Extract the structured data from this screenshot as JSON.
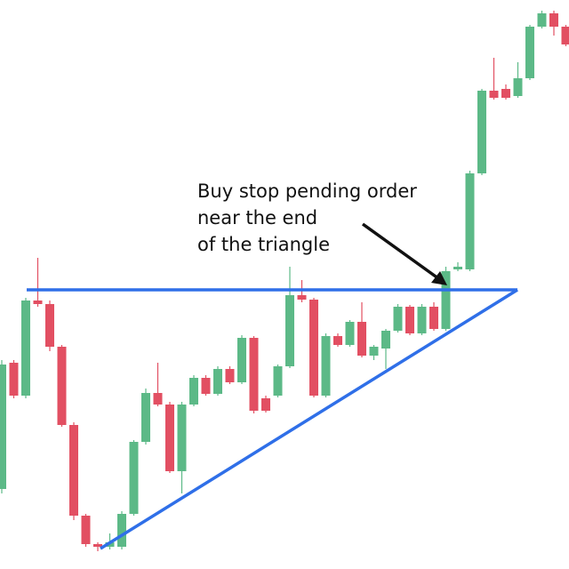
{
  "chart_data": {
    "type": "candlestick",
    "annotation": [
      "Buy stop pending order",
      "near the end",
      "of the triangle"
    ],
    "up_color": "#5cb987",
    "down_color": "#e24f62",
    "ylim": [
      0,
      640
    ],
    "open": [
      90,
      232,
      195,
      302,
      298,
      250,
      162,
      60,
      28,
      25,
      25,
      62,
      143,
      198,
      185,
      110,
      185,
      215,
      197,
      225,
      210,
      260,
      192,
      195,
      228,
      308,
      303,
      195,
      262,
      252,
      278,
      240,
      248,
      268,
      295,
      265,
      295,
      270,
      337,
      337,
      445,
      538,
      540,
      532,
      552,
      610,
      625,
      610
    ],
    "high": [
      235,
      235,
      305,
      350,
      302,
      252,
      165,
      62,
      30,
      40,
      65,
      145,
      203,
      232,
      188,
      188,
      218,
      218,
      228,
      228,
      263,
      262,
      195,
      230,
      340,
      325,
      305,
      265,
      265,
      280,
      300,
      252,
      270,
      298,
      297,
      298,
      300,
      340,
      345,
      448,
      540,
      575,
      545,
      570,
      612,
      628,
      628,
      612
    ],
    "low": [
      85,
      192,
      192,
      295,
      245,
      160,
      55,
      25,
      20,
      22,
      22,
      60,
      140,
      183,
      108,
      85,
      183,
      195,
      195,
      208,
      208,
      175,
      176,
      193,
      226,
      300,
      193,
      193,
      250,
      250,
      238,
      235,
      225,
      266,
      263,
      263,
      268,
      268,
      335,
      335,
      443,
      528,
      528,
      530,
      550,
      608,
      600,
      588
    ],
    "close": [
      230,
      195,
      302,
      298,
      250,
      162,
      60,
      28,
      25,
      30,
      62,
      143,
      198,
      185,
      110,
      185,
      215,
      197,
      225,
      210,
      260,
      178,
      178,
      228,
      308,
      303,
      195,
      262,
      252,
      278,
      240,
      250,
      268,
      295,
      265,
      295,
      270,
      335,
      340,
      445,
      538,
      530,
      530,
      552,
      610,
      625,
      610,
      590
    ]
  }
}
